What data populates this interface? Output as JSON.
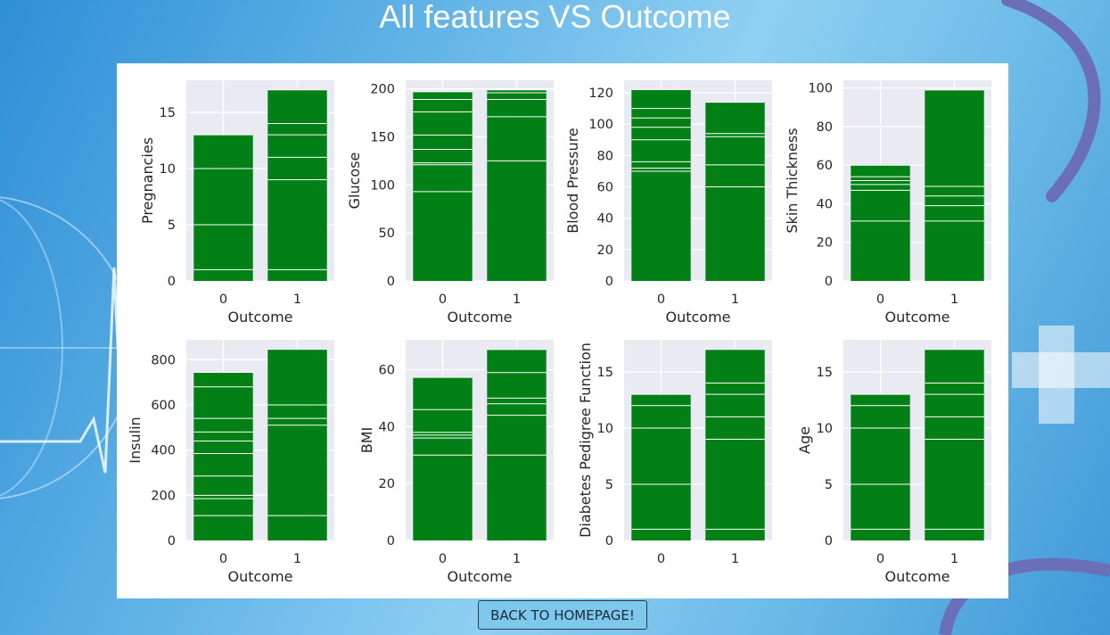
{
  "page": {
    "title": "All features VS Outcome",
    "back_button_label": "BACK TO HOMEPAGE!"
  },
  "colors": {
    "bar": "#008015",
    "plot_bg": "#eaeaf2",
    "grid": "#ffffff",
    "text": "#262626"
  },
  "chart_data": [
    {
      "type": "bar",
      "title": "",
      "xlabel": "Outcome",
      "ylabel": "Pregnancies",
      "categories": [
        "0",
        "1"
      ],
      "ylim": [
        0,
        17.85
      ],
      "yticks": [
        0,
        5,
        10,
        15
      ],
      "values": [
        13,
        17
      ],
      "segments": [
        [
          1,
          5,
          10,
          13
        ],
        [
          1,
          9,
          11,
          13,
          14,
          17
        ]
      ]
    },
    {
      "type": "bar",
      "title": "",
      "xlabel": "Outcome",
      "ylabel": "Glucose",
      "categories": [
        "0",
        "1"
      ],
      "ylim": [
        0,
        209
      ],
      "yticks": [
        0,
        50,
        100,
        150,
        200
      ],
      "values": [
        197,
        199
      ],
      "segments": [
        [
          93,
          121,
          123,
          137,
          152,
          176,
          189,
          197
        ],
        [
          125,
          171,
          189,
          196,
          199
        ]
      ]
    },
    {
      "type": "bar",
      "title": "",
      "xlabel": "Outcome",
      "ylabel": "Blood Pressure",
      "categories": [
        "0",
        "1"
      ],
      "ylim": [
        0,
        128
      ],
      "yticks": [
        0,
        20,
        40,
        60,
        80,
        100,
        120
      ],
      "values": [
        122,
        114
      ],
      "segments": [
        [
          70,
          72,
          76,
          90,
          98,
          104,
          110,
          122
        ],
        [
          60,
          74,
          92,
          94,
          114
        ]
      ]
    },
    {
      "type": "bar",
      "title": "",
      "xlabel": "Outcome",
      "ylabel": "Skin Thickness",
      "categories": [
        "0",
        "1"
      ],
      "ylim": [
        0,
        104
      ],
      "yticks": [
        0,
        20,
        40,
        60,
        80,
        100
      ],
      "values": [
        60,
        99
      ],
      "segments": [
        [
          31,
          47,
          50,
          52,
          54,
          60
        ],
        [
          31,
          39,
          44,
          49,
          99
        ]
      ]
    },
    {
      "type": "bar",
      "title": "",
      "xlabel": "Outcome",
      "ylabel": "Insulin",
      "categories": [
        "0",
        "1"
      ],
      "ylim": [
        0,
        888
      ],
      "yticks": [
        0,
        200,
        400,
        600,
        800
      ],
      "values": [
        744,
        846
      ],
      "segments": [
        [
          110,
          185,
          200,
          285,
          385,
          440,
          480,
          540,
          680,
          744
        ],
        [
          110,
          510,
          540,
          600,
          846
        ]
      ]
    },
    {
      "type": "bar",
      "title": "",
      "xlabel": "Outcome",
      "ylabel": "BMI",
      "categories": [
        "0",
        "1"
      ],
      "ylim": [
        0,
        70.5
      ],
      "yticks": [
        0,
        20,
        40,
        60
      ],
      "values": [
        57.3,
        67.1
      ],
      "segments": [
        [
          30,
          36,
          37,
          38,
          46,
          57.3
        ],
        [
          30,
          44,
          48,
          50,
          59,
          67.1
        ]
      ]
    },
    {
      "type": "bar",
      "title": "",
      "xlabel": "",
      "ylabel": "Diabetes Pedigree Function",
      "categories": [
        "0",
        "1"
      ],
      "ylim": [
        0,
        17.85
      ],
      "yticks": [
        0,
        5,
        10,
        15
      ],
      "values": [
        13,
        17
      ],
      "segments": [
        [
          1,
          5,
          10,
          12,
          13
        ],
        [
          1,
          9,
          11,
          13,
          14,
          17
        ]
      ]
    },
    {
      "type": "bar",
      "title": "",
      "xlabel": "Outcome",
      "ylabel": "Age",
      "categories": [
        "0",
        "1"
      ],
      "ylim": [
        0,
        17.85
      ],
      "yticks": [
        0,
        5,
        10,
        15
      ],
      "values": [
        13,
        17
      ],
      "segments": [
        [
          1,
          5,
          10,
          12,
          13
        ],
        [
          1,
          9,
          11,
          13,
          14,
          17
        ]
      ]
    }
  ]
}
